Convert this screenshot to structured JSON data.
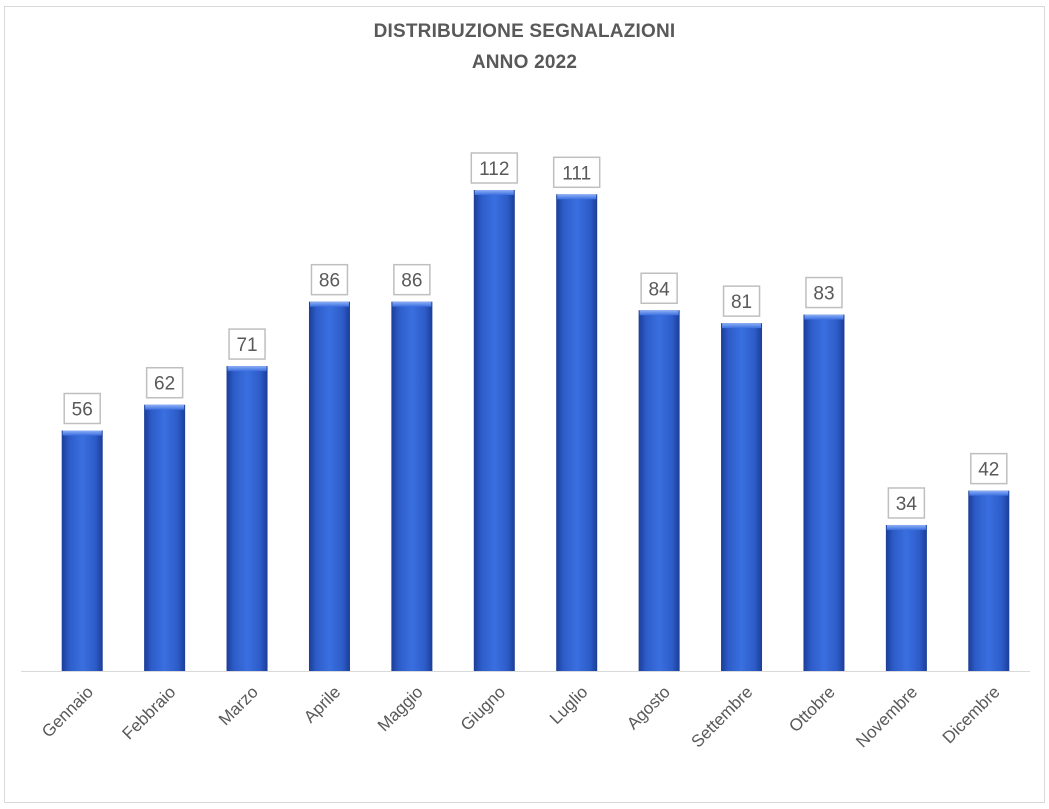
{
  "chart_data": {
    "type": "bar",
    "title_lines": [
      "DISTRIBUZIONE SEGNALAZIONI",
      "ANNO 2022"
    ],
    "categories": [
      "Gennaio",
      "Febbraio",
      "Marzo",
      "Aprile",
      "Maggio",
      "Giugno",
      "Luglio",
      "Agosto",
      "Settembre",
      "Ottobre",
      "Novembre",
      "Dicembre"
    ],
    "values": [
      56,
      62,
      71,
      86,
      86,
      112,
      111,
      84,
      81,
      83,
      34,
      42
    ],
    "xlabel": "",
    "ylabel": "",
    "ylim": [
      0,
      112
    ],
    "grid": false,
    "legend": "none",
    "data_labels": true,
    "bar_color": "#2e5fcf",
    "bar_color_dark": "#1d3f9a",
    "label_border_color": "#bfbfbf",
    "text_color": "#595959"
  }
}
